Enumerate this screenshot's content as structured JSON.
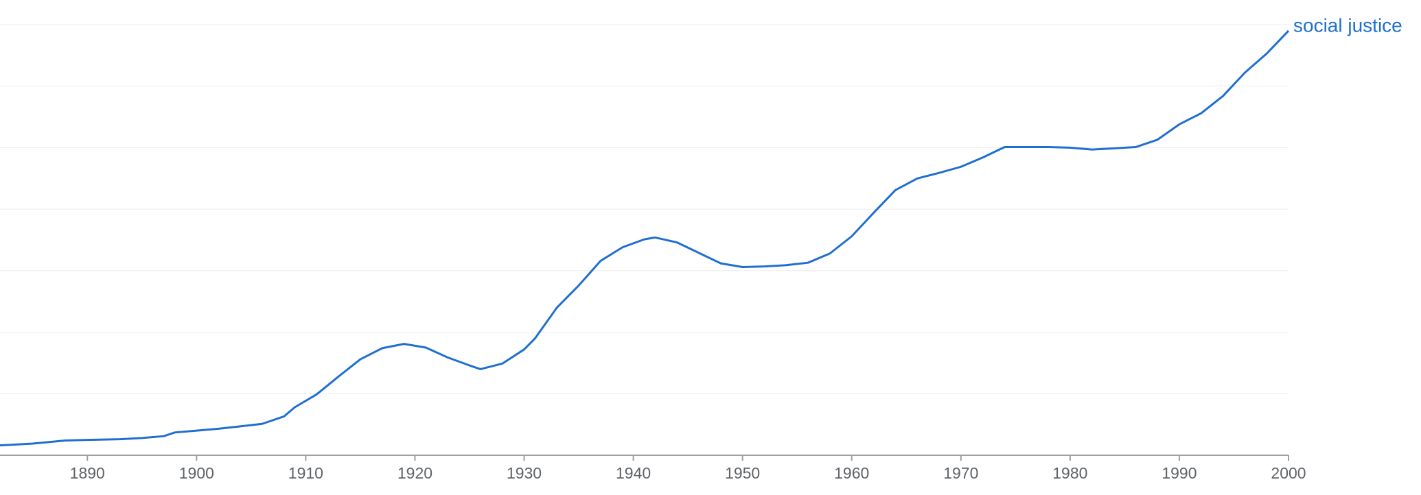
{
  "chart_data": {
    "type": "line",
    "x": [
      1882,
      1885,
      1888,
      1890,
      1893,
      1895,
      1897,
      1898,
      1900,
      1902,
      1904,
      1906,
      1908,
      1909,
      1911,
      1913,
      1915,
      1917,
      1919,
      1921,
      1923,
      1925,
      1926,
      1928,
      1930,
      1931,
      1933,
      1935,
      1937,
      1939,
      1941,
      1942,
      1944,
      1946,
      1948,
      1950,
      1952,
      1954,
      1956,
      1958,
      1960,
      1962,
      1964,
      1966,
      1968,
      1970,
      1972,
      1974,
      1976,
      1978,
      1980,
      1982,
      1984,
      1986,
      1988,
      1990,
      1992,
      1994,
      1996,
      1998,
      2000
    ],
    "series": [
      {
        "name": "social justice",
        "color": "#1f6fd1",
        "values": [
          0.16,
          0.19,
          0.24,
          0.25,
          0.26,
          0.28,
          0.31,
          0.37,
          0.4,
          0.43,
          0.47,
          0.51,
          0.63,
          0.78,
          0.99,
          1.28,
          1.56,
          1.74,
          1.81,
          1.75,
          1.59,
          1.46,
          1.4,
          1.49,
          1.72,
          1.9,
          2.4,
          2.76,
          3.16,
          3.38,
          3.51,
          3.54,
          3.46,
          3.29,
          3.12,
          3.06,
          3.07,
          3.09,
          3.13,
          3.28,
          3.56,
          3.94,
          4.31,
          4.5,
          4.59,
          4.69,
          4.84,
          5.01,
          5.01,
          5.01,
          5.0,
          4.97,
          4.99,
          5.01,
          5.13,
          5.38,
          5.56,
          5.84,
          6.22,
          6.53,
          6.9
        ]
      }
    ],
    "xlim": [
      1882,
      2000
    ],
    "xticks": [
      1890,
      1900,
      1910,
      1920,
      1930,
      1940,
      1950,
      1960,
      1970,
      1980,
      1990,
      2000
    ],
    "ylim": [
      0,
      7
    ],
    "ygrid": [
      1,
      2,
      3,
      4,
      5,
      6,
      7
    ]
  }
}
